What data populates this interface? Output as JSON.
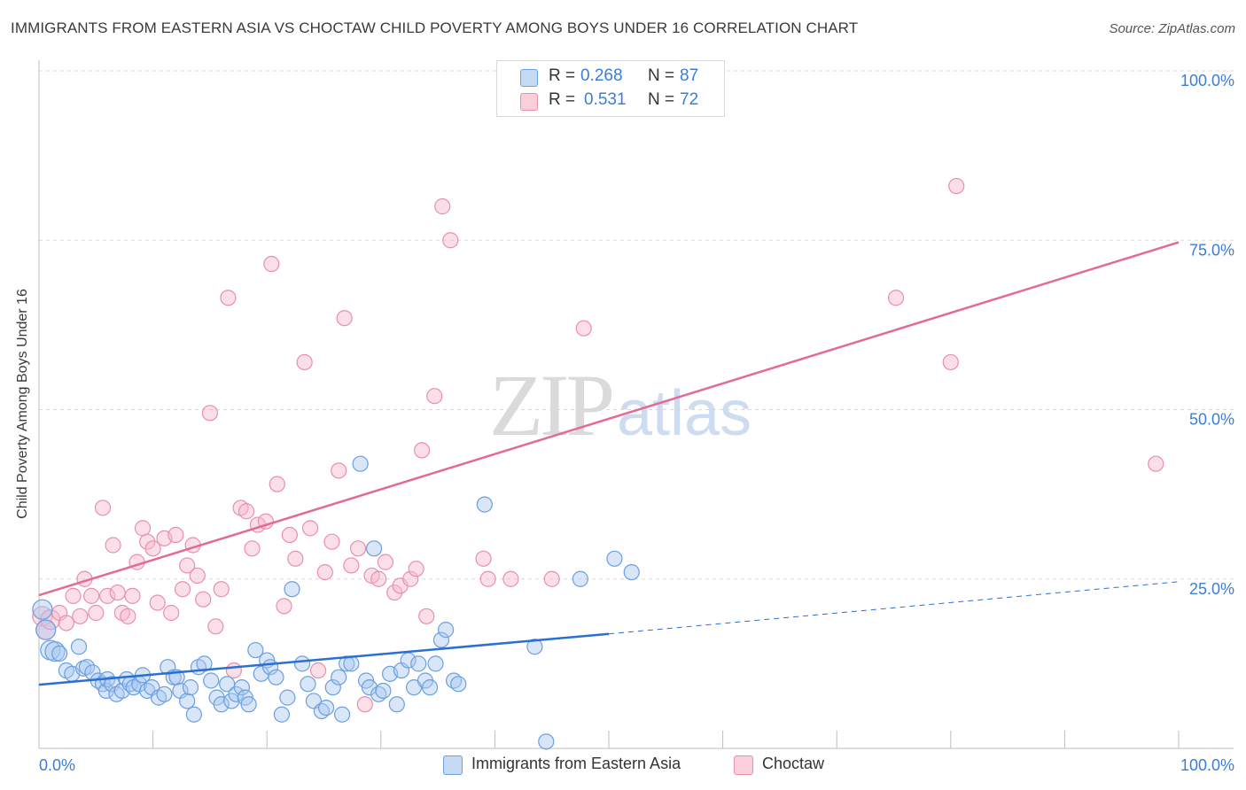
{
  "title": "IMMIGRANTS FROM EASTERN ASIA VS CHOCTAW CHILD POVERTY AMONG BOYS UNDER 16 CORRELATION CHART",
  "source": "Source: ZipAtlas.com",
  "watermark": {
    "zip": "ZIP",
    "atlas": "atlas"
  },
  "legend": {
    "rows": [
      {
        "r_label": "R =",
        "r_value": "0.268",
        "n_label": "N =",
        "n_value": "87"
      },
      {
        "r_label": "R =",
        "r_value": "0.531",
        "n_label": "N =",
        "n_value": "72"
      }
    ]
  },
  "colors": {
    "blue_fill": "#a9c8f0",
    "blue_stroke": "#6a9fe0",
    "blue_line": "#2a6fd4",
    "pink_fill": "#f6b9cb",
    "pink_stroke": "#ea8fab",
    "pink_line": "#e26a95",
    "tick_label": "#3b7dd8",
    "grid": "#d9d9d9"
  },
  "chart_data": {
    "type": "scatter",
    "title": "IMMIGRANTS FROM EASTERN ASIA VS CHOCTAW CHILD POVERTY AMONG BOYS UNDER 16 CORRELATION CHART",
    "xlabel": "",
    "ylabel": "Child Poverty Among Boys Under 16",
    "xlim": [
      0,
      100
    ],
    "ylim": [
      0,
      100
    ],
    "x_tick_labels": [
      "0.0%",
      "100.0%"
    ],
    "y_ticks": [
      25,
      50,
      75,
      100
    ],
    "y_tick_labels": [
      "25.0%",
      "50.0%",
      "75.0%",
      "100.0%"
    ],
    "grid": true,
    "legend_position": "bottom",
    "series": [
      {
        "name": "Immigrants from Eastern Asia",
        "color": "#a9c8f0",
        "points": [
          [
            0.3,
            20.5
          ],
          [
            0.6,
            17.5
          ],
          [
            1.0,
            14.5
          ],
          [
            1.4,
            14.3
          ],
          [
            1.8,
            14.0
          ],
          [
            2.4,
            11.5
          ],
          [
            2.9,
            11.0
          ],
          [
            3.5,
            15.0
          ],
          [
            3.9,
            11.8
          ],
          [
            4.2,
            12.0
          ],
          [
            4.7,
            11.2
          ],
          [
            5.2,
            10.0
          ],
          [
            5.6,
            9.5
          ],
          [
            5.9,
            8.5
          ],
          [
            6.0,
            10.2
          ],
          [
            6.4,
            9.5
          ],
          [
            6.8,
            8.0
          ],
          [
            7.3,
            8.5
          ],
          [
            7.7,
            10.2
          ],
          [
            8.0,
            9.5
          ],
          [
            8.3,
            9.0
          ],
          [
            8.8,
            9.5
          ],
          [
            9.1,
            10.8
          ],
          [
            9.5,
            8.5
          ],
          [
            9.9,
            9.0
          ],
          [
            10.5,
            7.5
          ],
          [
            11.0,
            8.0
          ],
          [
            11.3,
            12.0
          ],
          [
            11.8,
            10.5
          ],
          [
            12.1,
            10.5
          ],
          [
            12.4,
            8.5
          ],
          [
            13.0,
            7.0
          ],
          [
            13.3,
            9.0
          ],
          [
            13.6,
            5.0
          ],
          [
            14.0,
            12.0
          ],
          [
            14.5,
            12.5
          ],
          [
            15.1,
            10.0
          ],
          [
            15.6,
            7.5
          ],
          [
            16.0,
            6.5
          ],
          [
            16.5,
            9.5
          ],
          [
            16.9,
            7.0
          ],
          [
            17.3,
            8.0
          ],
          [
            17.8,
            9.0
          ],
          [
            18.1,
            7.5
          ],
          [
            18.4,
            6.5
          ],
          [
            19.0,
            14.5
          ],
          [
            19.5,
            11.0
          ],
          [
            20.0,
            13.0
          ],
          [
            20.3,
            12.0
          ],
          [
            20.8,
            10.5
          ],
          [
            21.3,
            5.0
          ],
          [
            21.8,
            7.5
          ],
          [
            22.2,
            23.5
          ],
          [
            23.1,
            12.5
          ],
          [
            23.6,
            9.5
          ],
          [
            24.1,
            7.0
          ],
          [
            24.8,
            5.5
          ],
          [
            25.2,
            6.0
          ],
          [
            25.8,
            9.0
          ],
          [
            26.3,
            10.5
          ],
          [
            26.6,
            5.0
          ],
          [
            27.0,
            12.5
          ],
          [
            27.4,
            12.5
          ],
          [
            28.2,
            42.0
          ],
          [
            28.7,
            10.0
          ],
          [
            29.0,
            9.0
          ],
          [
            29.4,
            29.5
          ],
          [
            29.8,
            8.0
          ],
          [
            30.2,
            8.5
          ],
          [
            30.8,
            11.0
          ],
          [
            31.4,
            6.5
          ],
          [
            31.8,
            11.5
          ],
          [
            32.4,
            13.0
          ],
          [
            32.9,
            9.0
          ],
          [
            33.3,
            12.5
          ],
          [
            33.9,
            10.0
          ],
          [
            34.3,
            9.0
          ],
          [
            34.8,
            12.5
          ],
          [
            35.3,
            16.0
          ],
          [
            35.7,
            17.5
          ],
          [
            36.4,
            10.0
          ],
          [
            36.8,
            9.5
          ],
          [
            39.1,
            36.0
          ],
          [
            43.5,
            15.0
          ],
          [
            44.5,
            1.0
          ],
          [
            47.5,
            25.0
          ],
          [
            50.5,
            28.0
          ],
          [
            52.0,
            26.0
          ]
        ]
      },
      {
        "name": "Choctaw",
        "color": "#f6b9cb",
        "points": [
          [
            0.3,
            19.5
          ],
          [
            0.6,
            17.5
          ],
          [
            1.0,
            19.0
          ],
          [
            1.8,
            20.0
          ],
          [
            2.4,
            18.5
          ],
          [
            3.0,
            22.5
          ],
          [
            3.6,
            19.5
          ],
          [
            4.0,
            25.0
          ],
          [
            4.6,
            22.5
          ],
          [
            5.0,
            20.0
          ],
          [
            5.6,
            35.5
          ],
          [
            6.0,
            22.5
          ],
          [
            6.5,
            30.0
          ],
          [
            6.9,
            23.0
          ],
          [
            7.3,
            20.0
          ],
          [
            7.8,
            19.5
          ],
          [
            8.2,
            22.5
          ],
          [
            8.6,
            27.5
          ],
          [
            9.1,
            32.5
          ],
          [
            9.5,
            30.5
          ],
          [
            10.0,
            29.5
          ],
          [
            10.4,
            21.5
          ],
          [
            11.0,
            31.0
          ],
          [
            11.6,
            20.0
          ],
          [
            12.0,
            31.5
          ],
          [
            12.6,
            23.5
          ],
          [
            13.0,
            27.0
          ],
          [
            13.5,
            30.0
          ],
          [
            13.9,
            25.5
          ],
          [
            14.4,
            22.0
          ],
          [
            15.0,
            49.5
          ],
          [
            15.5,
            18.0
          ],
          [
            16.0,
            23.5
          ],
          [
            16.6,
            66.5
          ],
          [
            17.1,
            11.5
          ],
          [
            17.7,
            35.5
          ],
          [
            18.2,
            35.0
          ],
          [
            18.7,
            29.5
          ],
          [
            19.2,
            33.0
          ],
          [
            19.9,
            33.5
          ],
          [
            20.4,
            71.5
          ],
          [
            20.9,
            39.0
          ],
          [
            21.5,
            21.0
          ],
          [
            22.0,
            31.5
          ],
          [
            22.5,
            28.0
          ],
          [
            23.3,
            57.0
          ],
          [
            23.8,
            32.5
          ],
          [
            24.5,
            11.5
          ],
          [
            25.1,
            26.0
          ],
          [
            25.7,
            30.5
          ],
          [
            26.3,
            41.0
          ],
          [
            26.8,
            63.5
          ],
          [
            27.4,
            27.0
          ],
          [
            28.0,
            29.5
          ],
          [
            28.6,
            6.5
          ],
          [
            29.2,
            25.5
          ],
          [
            29.8,
            25.0
          ],
          [
            30.4,
            27.5
          ],
          [
            31.2,
            23.0
          ],
          [
            31.7,
            24.0
          ],
          [
            32.6,
            25.0
          ],
          [
            33.1,
            26.5
          ],
          [
            33.6,
            44.0
          ],
          [
            34.0,
            19.5
          ],
          [
            34.7,
            52.0
          ],
          [
            35.4,
            80.0
          ],
          [
            36.1,
            75.0
          ],
          [
            39.0,
            28.0
          ],
          [
            39.4,
            25.0
          ],
          [
            41.4,
            25.0
          ],
          [
            45.0,
            25.0
          ],
          [
            47.8,
            62.0
          ],
          [
            75.2,
            66.5
          ],
          [
            80.5,
            83.0
          ],
          [
            80.0,
            57.0
          ],
          [
            98.0,
            42.0
          ]
        ]
      }
    ],
    "trendlines": [
      {
        "series": "Immigrants from Eastern Asia",
        "x_solid": [
          0,
          50
        ],
        "y_solid": [
          9.4,
          16.9
        ],
        "x_dashed": [
          50,
          100
        ],
        "y_dashed": [
          16.9,
          24.6
        ]
      },
      {
        "series": "Choctaw",
        "x": [
          0,
          100
        ],
        "y": [
          22.6,
          74.7
        ]
      }
    ]
  }
}
